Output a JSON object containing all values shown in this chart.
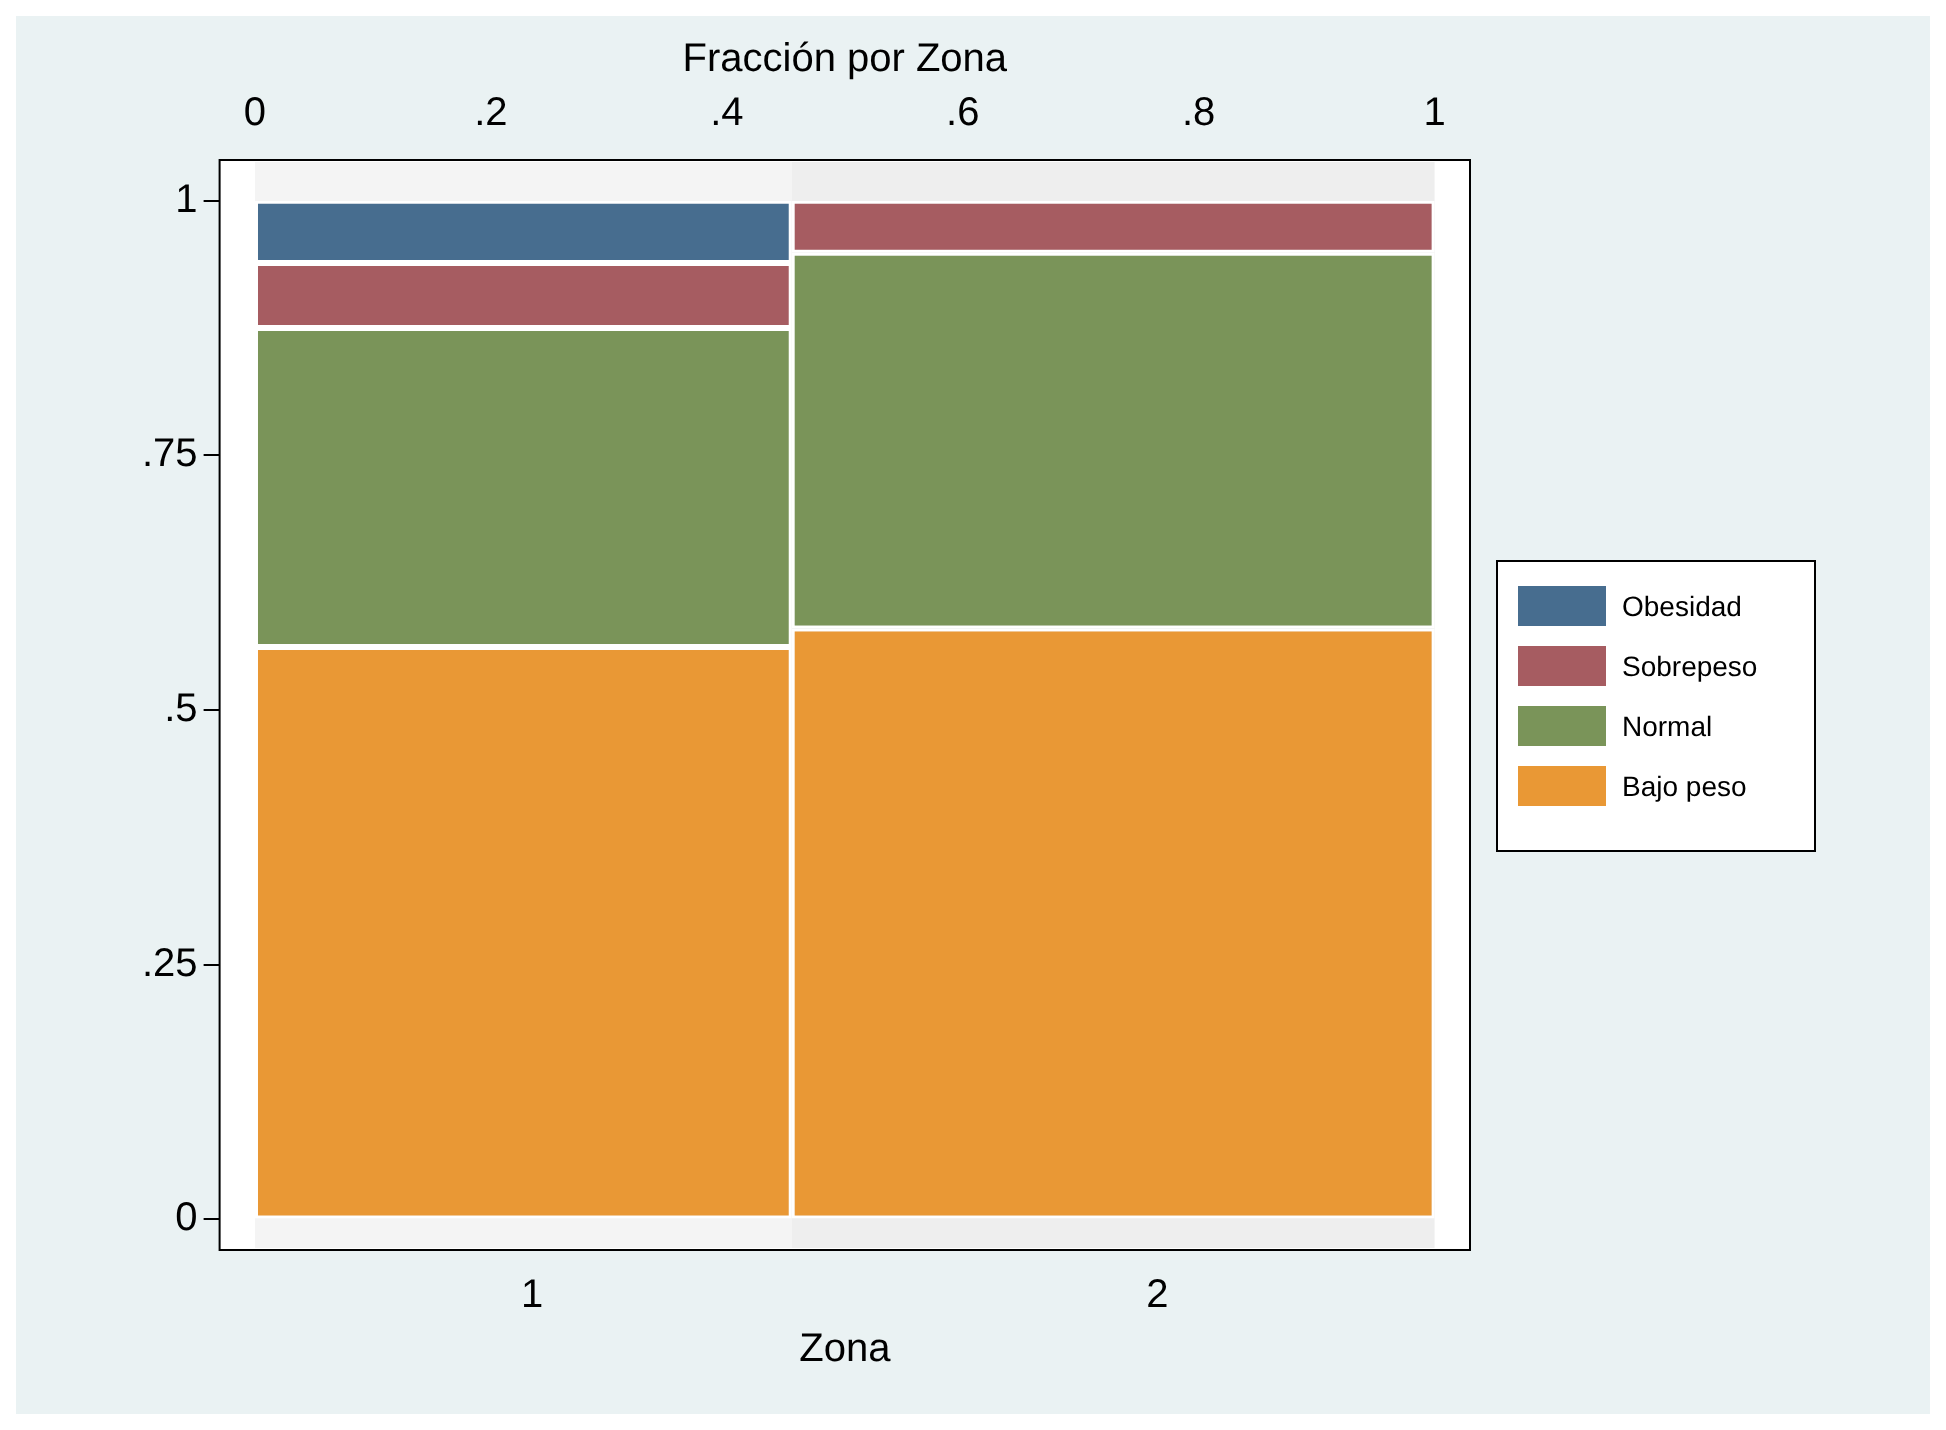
{
  "chart_data": {
    "type": "bar",
    "stacked": true,
    "xlabel": "Zona",
    "x2label": "Fracción por Zona",
    "categories": [
      "1",
      "2"
    ],
    "bands": [
      {
        "axis": "x2",
        "from": 0,
        "to": 0.455
      },
      {
        "axis": "x2",
        "from": 0.455,
        "to": 1
      }
    ],
    "series": [
      {
        "name": "Bajo peso",
        "color": "#e99835",
        "values": [
          0.562,
          0.58
        ]
      },
      {
        "name": "Normal",
        "color": "#7a9459",
        "values": [
          0.313,
          0.369
        ]
      },
      {
        "name": "Sobrepeso",
        "color": "#a65c61",
        "values": [
          0.064,
          0.051
        ]
      },
      {
        "name": "Obesidad",
        "color": "#476d8f",
        "values": [
          0.061,
          0
        ]
      }
    ],
    "ylim": [
      -0.03,
      1.04
    ],
    "yticks": [
      0,
      {
        "value": 0.25,
        "label": ".25"
      },
      {
        "value": 0.5,
        "label": ".5"
      },
      {
        "value": 0.75,
        "label": ".75"
      },
      1
    ],
    "x2lim": [
      -0.03,
      1.03
    ],
    "x2ticks": [
      0,
      {
        "value": 0.2,
        "label": ".2"
      },
      {
        "value": 0.4,
        "label": ".4"
      },
      {
        "value": 0.6,
        "label": ".6"
      },
      {
        "value": 0.8,
        "label": ".8"
      },
      1
    ],
    "grid": false,
    "legend": "right"
  }
}
